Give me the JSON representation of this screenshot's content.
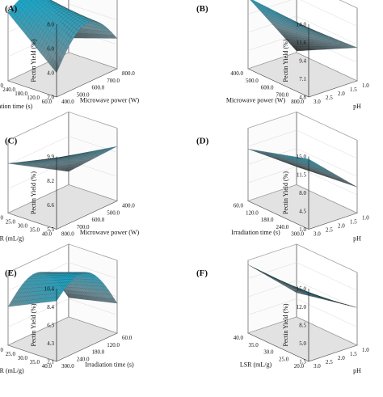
{
  "figure": {
    "panels": [
      {
        "label": "(A)",
        "z_label": "Pectin Yield (%)",
        "z_ticks": [
          "8.0",
          "6.0",
          "4.0",
          "2.0"
        ],
        "x_label": "Microwave power (W)",
        "x_ticks": [
          "400.0",
          "500.0",
          "600.0",
          "700.0",
          "800.0"
        ],
        "y_label": "Irradiation time (s)",
        "y_ticks": [
          "300.0",
          "240.0",
          "180.0",
          "120.0",
          "60.0"
        ]
      },
      {
        "label": "(B)",
        "z_label": "Pectin Yield (%)",
        "z_ticks": [
          "14.0",
          "11.6",
          "9.4",
          "7.1",
          "4.8"
        ],
        "x_label": "Microwave power (W)",
        "x_ticks": [
          "800.0",
          "700.0",
          "600.0",
          "500.0",
          "400.0"
        ],
        "y_label": "pH",
        "y_ticks": [
          "1.0",
          "1.5",
          "2.0",
          "2.5",
          "3.0"
        ]
      },
      {
        "label": "(C)",
        "z_label": "Pectin Yield (%)",
        "z_ticks": [
          "9.9",
          "8.2",
          "6.6",
          "5.5"
        ],
        "x_label": "Microwave power (W)",
        "x_ticks": [
          "800.0",
          "700.0",
          "600.0",
          "500.0",
          "400.0"
        ],
        "y_label": "LSR (mL/g)",
        "y_ticks": [
          "20.0",
          "25.0",
          "30.0",
          "35.0",
          "40.0"
        ]
      },
      {
        "label": "(D)",
        "z_label": "Pectin Yield (%)",
        "z_ticks": [
          "15.0",
          "11.5",
          "8.0",
          "4.5",
          "1.0"
        ],
        "x_label": "Irradiation time (s)",
        "x_ticks": [
          "300.0",
          "240.0",
          "180.0",
          "120.0",
          "60.0"
        ],
        "y_label": "pH",
        "y_ticks": [
          "1.0",
          "1.5",
          "2.0",
          "2.5",
          "3.0"
        ]
      },
      {
        "label": "(E)",
        "z_label": "Pectin Yield (%)",
        "z_ticks": [
          "10.4",
          "8.4",
          "6.3",
          "4.3",
          "2.1"
        ],
        "x_label": "Irradiation time (s)",
        "x_ticks": [
          "300.0",
          "240.0",
          "180.0",
          "120.0",
          "60.0"
        ],
        "y_label": "LSR (mL/g)",
        "y_ticks": [
          "20.0",
          "25.0",
          "30.0",
          "35.0",
          "40.0"
        ]
      },
      {
        "label": "(F)",
        "z_label": "Pectin Yield (%)",
        "z_ticks": [
          "15.0",
          "12.0",
          "8.5",
          "5.0",
          "1.5"
        ],
        "x_label": "LSR (mL/g)",
        "x_ticks": [
          "20.0",
          "25.0",
          "30.0",
          "35.0",
          "40.0"
        ],
        "y_label": "pH",
        "y_ticks": [
          "1.0",
          "1.5",
          "2.0",
          "2.5",
          "3.0"
        ]
      }
    ]
  },
  "chart_data": [
    {
      "type": "surface",
      "panel": "(A)",
      "x_axis": "Microwave power (W)",
      "x_range": [
        400,
        800
      ],
      "y_axis": "Irradiation time (s)",
      "y_range": [
        60,
        300
      ],
      "z_axis": "Pectin Yield (%)",
      "z_range": [
        2.0,
        8.0
      ],
      "corner_z": {
        "x_low_y_low": 4.0,
        "x_high_y_low": 4.5,
        "x_low_y_high": 7.6,
        "x_high_y_high": 3.2
      },
      "peak_z": 7.8,
      "grid": true,
      "colormap": [
        "#2a2a2a",
        "#6e8f99",
        "#1aa6c8"
      ]
    },
    {
      "type": "surface",
      "panel": "(B)",
      "x_axis": "Microwave power (W)",
      "x_range": [
        400,
        800
      ],
      "y_axis": "pH",
      "y_range": [
        1.0,
        3.0
      ],
      "z_axis": "Pectin Yield (%)",
      "z_range": [
        4.8,
        14.0
      ],
      "corner_z": {
        "x_low_y_low": 13.5,
        "x_high_y_low": 13.8,
        "x_low_y_high": 9.0,
        "x_high_y_high": 5.0
      },
      "grid": true,
      "colormap": [
        "#2a2a2a",
        "#6e8f99",
        "#1aa6c8"
      ]
    },
    {
      "type": "surface",
      "panel": "(C)",
      "x_axis": "Microwave power (W)",
      "x_range": [
        400,
        800
      ],
      "y_axis": "LSR (mL/g)",
      "y_range": [
        20,
        40
      ],
      "z_axis": "Pectin Yield (%)",
      "z_range": [
        5.5,
        9.9
      ],
      "corner_z": {
        "x_low_y_low": 9.8,
        "x_high_y_low": 8.8,
        "x_low_y_high": 8.5,
        "x_high_y_high": 6.3
      },
      "grid": true,
      "colormap": [
        "#2a2a2a",
        "#6e8f99",
        "#1aa6c8"
      ]
    },
    {
      "type": "surface",
      "panel": "(D)",
      "x_axis": "Irradiation time (s)",
      "x_range": [
        60,
        300
      ],
      "y_axis": "pH",
      "y_range": [
        1.0,
        3.0
      ],
      "z_axis": "Pectin Yield (%)",
      "z_range": [
        1.0,
        15.0
      ],
      "corner_z": {
        "x_low_y_low": 14.5,
        "x_high_y_low": 11.0,
        "x_low_y_high": 6.0,
        "x_high_y_high": 4.5
      },
      "grid": true,
      "colormap": [
        "#2a2a2a",
        "#6e8f99",
        "#1aa6c8"
      ]
    },
    {
      "type": "surface",
      "panel": "(E)",
      "x_axis": "Irradiation time (s)",
      "x_range": [
        60,
        300
      ],
      "y_axis": "LSR (mL/g)",
      "y_range": [
        20,
        40
      ],
      "z_axis": "Pectin Yield (%)",
      "z_range": [
        2.1,
        10.4
      ],
      "corner_z": {
        "x_low_y_low": 9.0,
        "x_high_y_low": 5.5,
        "x_low_y_high": 6.5,
        "x_high_y_high": 4.3
      },
      "peak_z": 10.1,
      "grid": true,
      "colormap": [
        "#2a2a2a",
        "#6e8f99",
        "#1aa6c8"
      ]
    },
    {
      "type": "surface",
      "panel": "(F)",
      "x_axis": "LSR (mL/g)",
      "x_range": [
        20,
        40
      ],
      "y_axis": "pH",
      "y_range": [
        1.0,
        3.0
      ],
      "z_axis": "Pectin Yield (%)",
      "z_range": [
        1.5,
        15.0
      ],
      "corner_z": {
        "x_low_y_low": 13.8,
        "x_high_y_low": 14.2,
        "x_low_y_high": 8.5,
        "x_high_y_high": 6.0
      },
      "grid": true,
      "colormap": [
        "#2a2a2a",
        "#6e8f99",
        "#1aa6c8"
      ]
    }
  ]
}
